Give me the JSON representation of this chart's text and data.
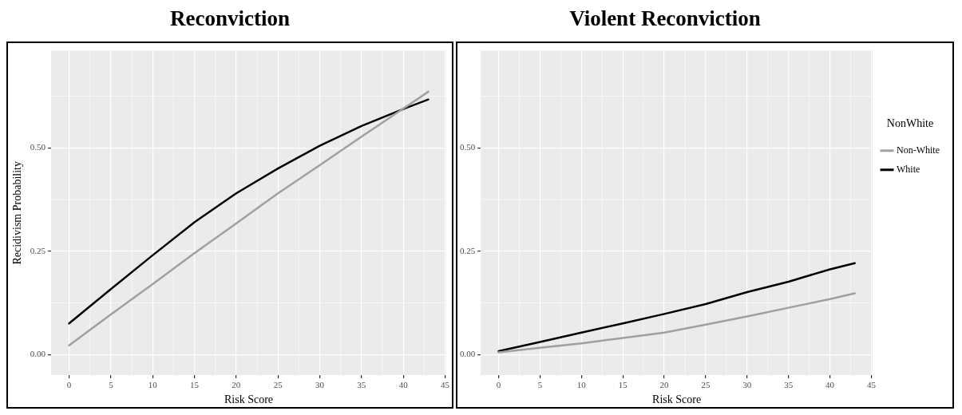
{
  "chart_data": [
    {
      "type": "line",
      "title": "Reconviction",
      "xlabel": "Risk Score",
      "ylabel": "Recidivism Probability",
      "x": [
        0,
        5,
        10,
        15,
        20,
        25,
        30,
        35,
        40,
        43
      ],
      "series": [
        {
          "color": "#a0a0a0",
          "values": [
            0.022,
            0.097,
            0.17,
            0.245,
            0.317,
            0.39,
            0.458,
            0.527,
            0.595,
            0.636
          ]
        },
        {
          "color": "#000000",
          "values": [
            0.075,
            0.158,
            0.24,
            0.32,
            0.39,
            0.45,
            0.505,
            0.553,
            0.594,
            0.617
          ]
        }
      ],
      "xlim": [
        -2.15,
        45.15
      ],
      "xticks": [
        0,
        5,
        10,
        15,
        20,
        25,
        30,
        35,
        40,
        45
      ],
      "ylim": [
        -0.05,
        0.735
      ],
      "yticks": [
        {
          "value": 0,
          "label": "0.00"
        },
        {
          "value": 0.25,
          "label": "0.25"
        },
        {
          "value": 0.5,
          "label": "0.50"
        }
      ],
      "grid": true,
      "legend": false,
      "marker": "none",
      "line_style": "solid"
    },
    {
      "type": "line",
      "title": "Violent Reconviction",
      "xlabel": "Risk Score",
      "legend_title": "NonWhite",
      "x": [
        0,
        5,
        10,
        15,
        20,
        25,
        30,
        35,
        40,
        43
      ],
      "series": [
        {
          "name": "Non-White",
          "color": "#a0a0a0",
          "values": [
            0.005,
            0.016,
            0.027,
            0.04,
            0.053,
            0.072,
            0.092,
            0.113,
            0.134,
            0.148
          ]
        },
        {
          "name": "White",
          "color": "#000000",
          "values": [
            0.008,
            0.03,
            0.053,
            0.075,
            0.098,
            0.122,
            0.151,
            0.176,
            0.206,
            0.221
          ]
        }
      ],
      "xlim": [
        -2.15,
        45.15
      ],
      "xticks": [
        0,
        5,
        10,
        15,
        20,
        25,
        30,
        35,
        40,
        45
      ],
      "ylim": [
        -0.05,
        0.735
      ],
      "yticks": [
        {
          "value": 0,
          "label": "0.00"
        },
        {
          "value": 0.25,
          "label": "0.25"
        },
        {
          "value": 0.5,
          "label": "0.50"
        }
      ],
      "grid": true,
      "legend": "right",
      "marker": "none",
      "line_style": "solid"
    }
  ]
}
